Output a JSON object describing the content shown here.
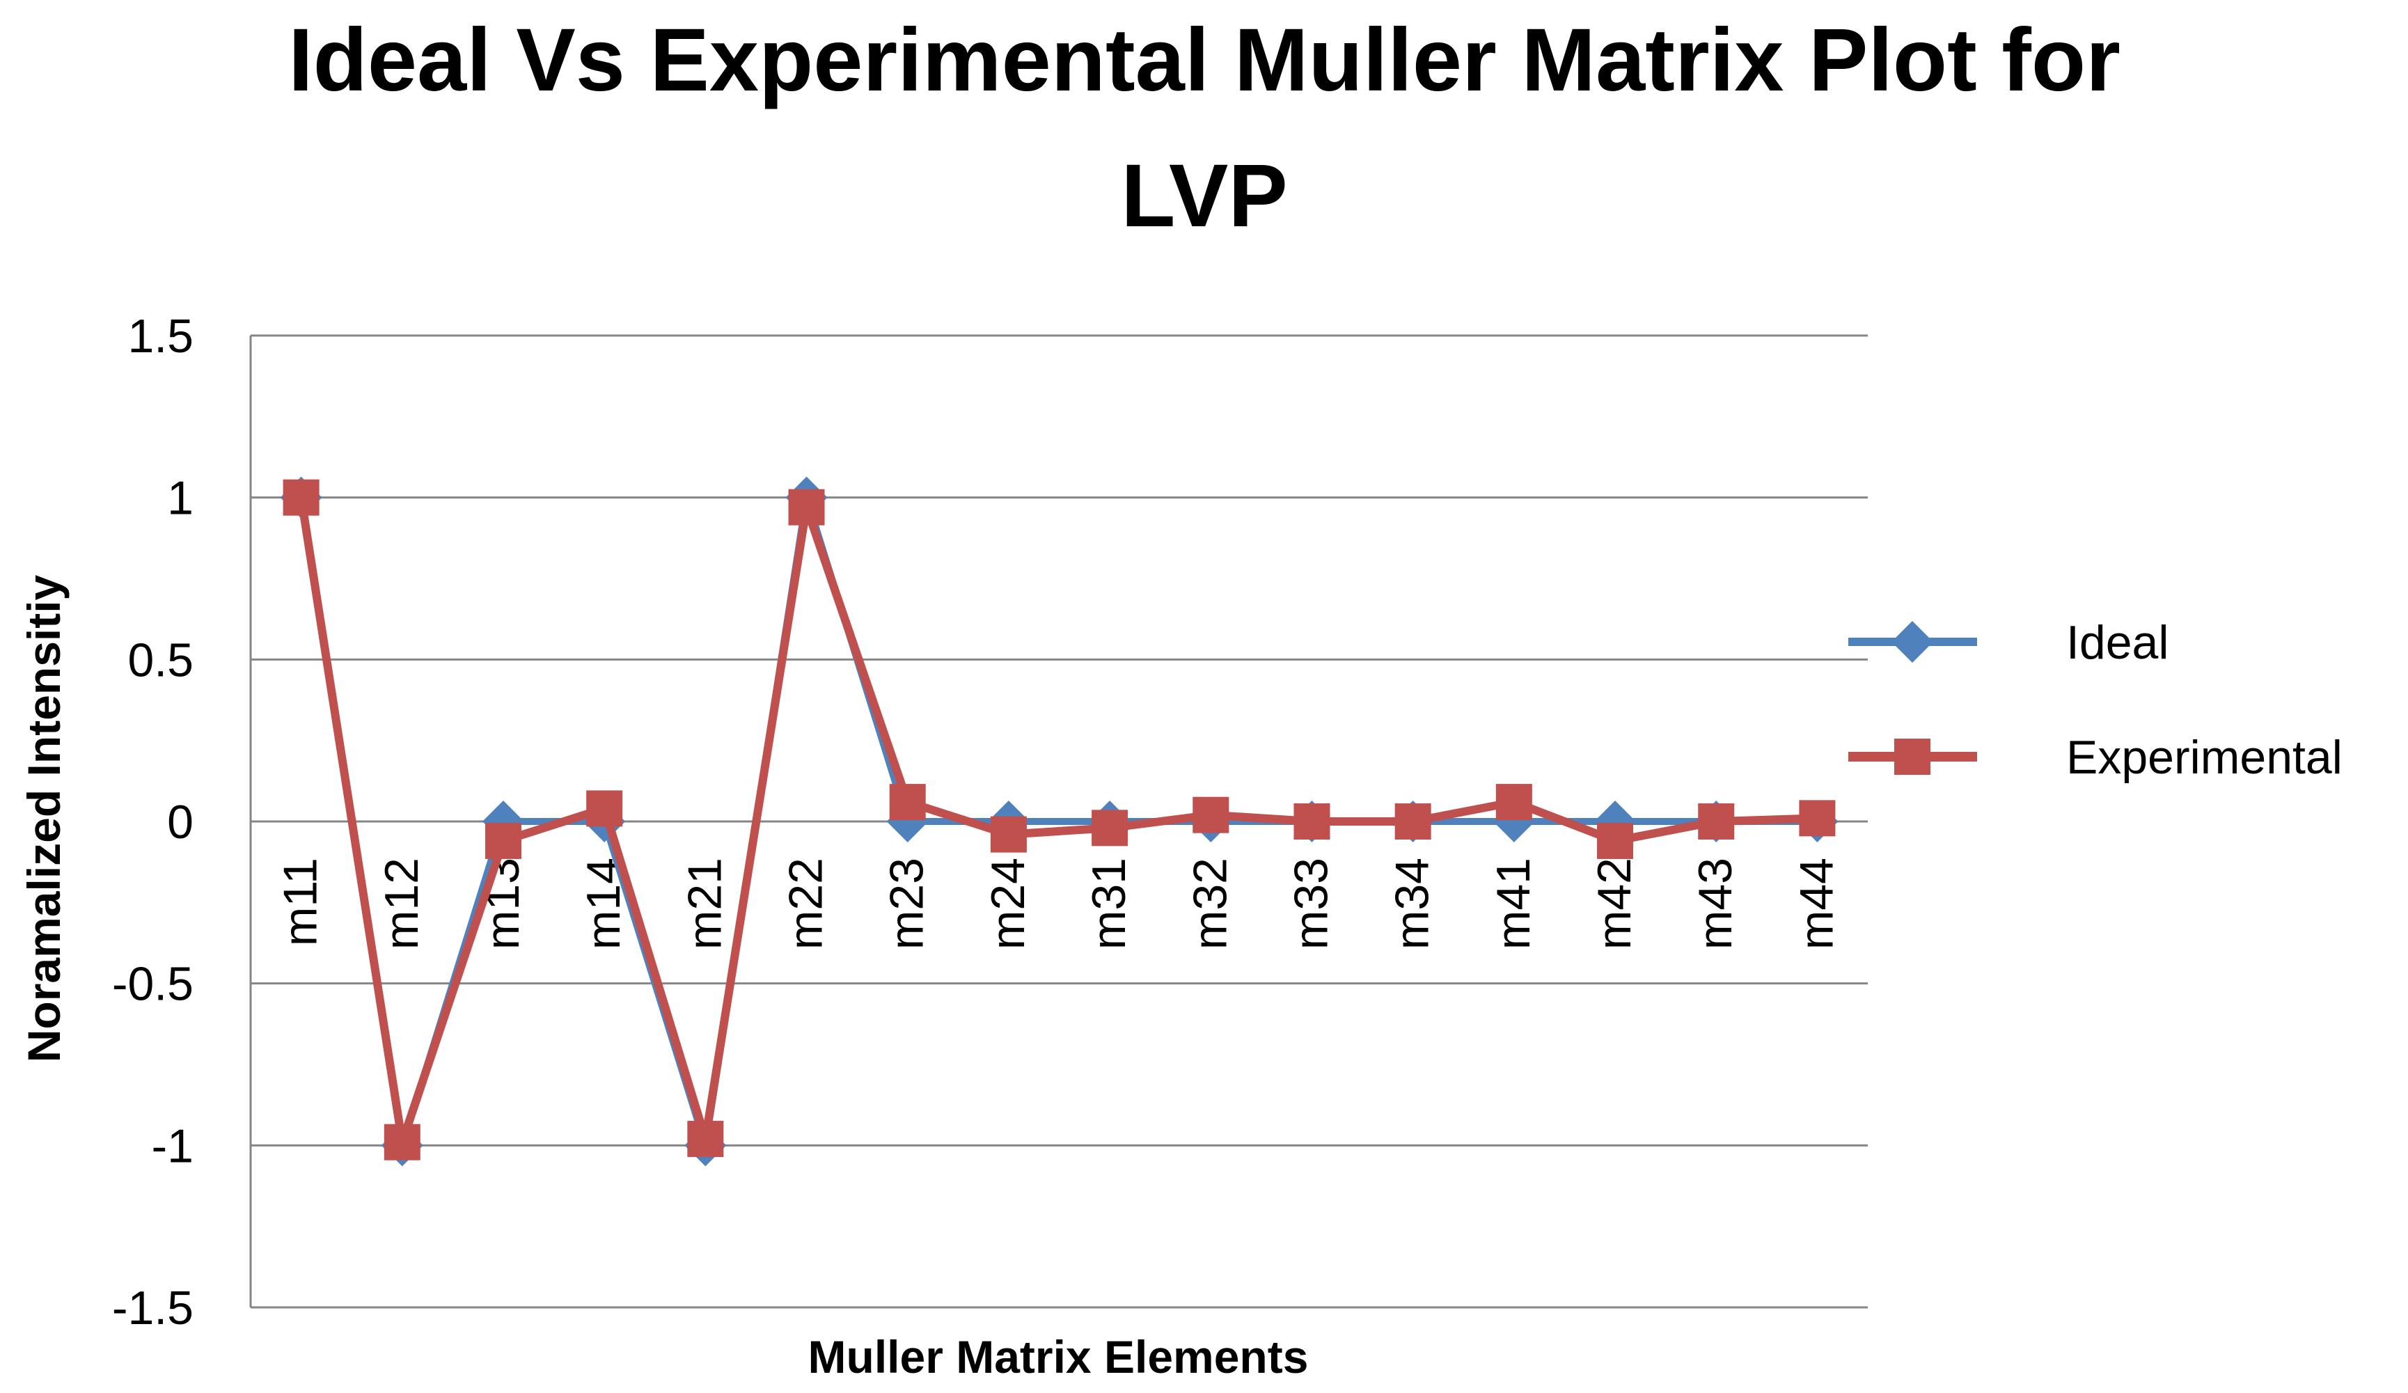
{
  "chart_data": {
    "type": "line",
    "title": "Ideal Vs Experimental Muller Matrix Plot for LVP",
    "title_lines": [
      "Ideal Vs Experimental Muller Matrix Plot for",
      "LVP"
    ],
    "xlabel": "Muller Matrix Elements",
    "ylabel": "Noramalized Intensitiy",
    "ylim": [
      -1.5,
      1.5
    ],
    "yticks": [
      1.5,
      1,
      0.5,
      0,
      -0.5,
      -1,
      -1.5
    ],
    "ytick_labels": [
      "1.5",
      "1",
      "0.5",
      "0",
      "-0.5",
      "-1",
      "-1.5"
    ],
    "grid": true,
    "legend_position": "right",
    "categories": [
      "m11",
      "m12",
      "m13",
      "m14",
      "m21",
      "m22",
      "m23",
      "m24",
      "m31",
      "m32",
      "m33",
      "m34",
      "m41",
      "m42",
      "m43",
      "m44"
    ],
    "series": [
      {
        "name": "Ideal",
        "marker": "diamond",
        "color": "#4F81BD",
        "values": [
          1,
          -1,
          0,
          0,
          -1,
          1,
          0,
          0,
          0,
          0,
          0,
          0,
          0,
          0,
          0,
          0
        ]
      },
      {
        "name": "Experimental",
        "marker": "square",
        "color": "#C0504D",
        "values": [
          1,
          -0.99,
          -0.06,
          0.04,
          -0.98,
          0.97,
          0.06,
          -0.04,
          -0.02,
          0.02,
          0.0,
          0.0,
          0.06,
          -0.06,
          0.0,
          0.01
        ]
      }
    ]
  }
}
